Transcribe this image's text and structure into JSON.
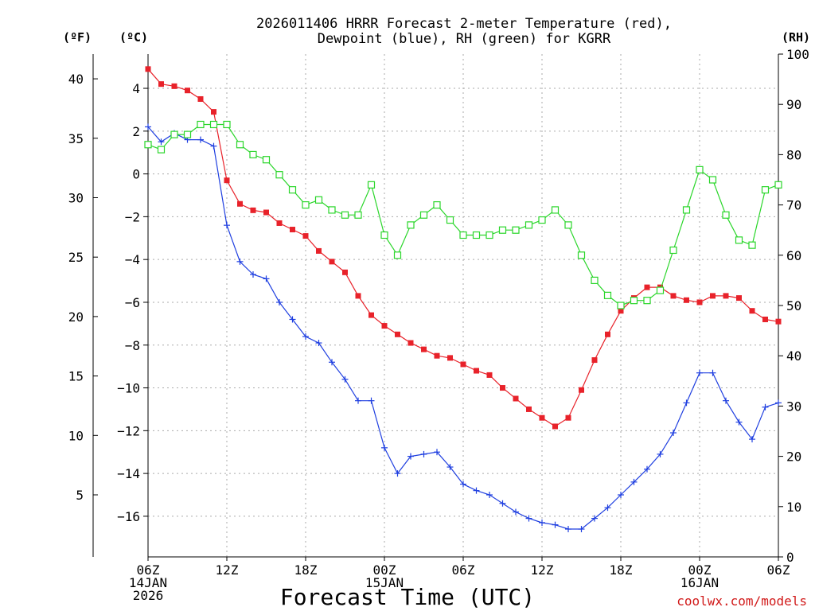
{
  "chart_data": {
    "type": "line",
    "title_line1": "2026011406 HRRR Forecast 2-meter Temperature (red),",
    "title_line2": "Dewpoint (blue), RH (green) for KGRR",
    "xlabel": "Forecast Time (UTC)",
    "watermark": "coolwx.com/models",
    "unit_f_label": "(ºF)",
    "unit_c_label": "(ºC)",
    "unit_rh_label": "(RH)",
    "xlim": [
      0,
      48
    ],
    "ylim_c": [
      -17.9,
      5.6
    ],
    "ylim_rh": [
      0,
      100
    ],
    "x_ticks": [
      {
        "x": 0,
        "label": "06Z",
        "sub1": "14JAN",
        "sub2": "2026"
      },
      {
        "x": 6,
        "label": "12Z",
        "sub1": "",
        "sub2": ""
      },
      {
        "x": 12,
        "label": "18Z",
        "sub1": "",
        "sub2": ""
      },
      {
        "x": 18,
        "label": "00Z",
        "sub1": "15JAN",
        "sub2": ""
      },
      {
        "x": 24,
        "label": "06Z",
        "sub1": "",
        "sub2": ""
      },
      {
        "x": 30,
        "label": "12Z",
        "sub1": "",
        "sub2": ""
      },
      {
        "x": 36,
        "label": "18Z",
        "sub1": "",
        "sub2": ""
      },
      {
        "x": 42,
        "label": "00Z",
        "sub1": "16JAN",
        "sub2": ""
      },
      {
        "x": 48,
        "label": "06Z",
        "sub1": "",
        "sub2": ""
      }
    ],
    "c_ticks": [
      {
        "v": 4,
        "label": "4"
      },
      {
        "v": 2,
        "label": "2"
      },
      {
        "v": 0,
        "label": "0"
      },
      {
        "v": -2,
        "label": "−2"
      },
      {
        "v": -4,
        "label": "−4"
      },
      {
        "v": -6,
        "label": "−6"
      },
      {
        "v": -8,
        "label": "−8"
      },
      {
        "v": -10,
        "label": "−10"
      },
      {
        "v": -12,
        "label": "−12"
      },
      {
        "v": -14,
        "label": "−14"
      },
      {
        "v": -16,
        "label": "−16"
      }
    ],
    "f_ticks": [
      {
        "v": 40,
        "label": "40"
      },
      {
        "v": 35,
        "label": "35"
      },
      {
        "v": 30,
        "label": "30"
      },
      {
        "v": 25,
        "label": "25"
      },
      {
        "v": 20,
        "label": "20"
      },
      {
        "v": 15,
        "label": "15"
      },
      {
        "v": 10,
        "label": "10"
      },
      {
        "v": 5,
        "label": "5"
      }
    ],
    "rh_ticks": [
      {
        "v": 100,
        "label": "100"
      },
      {
        "v": 90,
        "label": "90"
      },
      {
        "v": 80,
        "label": "80"
      },
      {
        "v": 70,
        "label": "70"
      },
      {
        "v": 60,
        "label": "60"
      },
      {
        "v": 50,
        "label": "50"
      },
      {
        "v": 40,
        "label": "40"
      },
      {
        "v": 30,
        "label": "30"
      },
      {
        "v": 20,
        "label": "20"
      },
      {
        "v": 10,
        "label": "10"
      },
      {
        "v": 0,
        "label": "0"
      }
    ],
    "series": [
      {
        "name": "Temperature (°C)",
        "axis": "c",
        "color": "#e8222a",
        "marker": "filled-square",
        "values": [
          4.9,
          4.2,
          4.1,
          3.9,
          3.5,
          2.9,
          -0.3,
          -1.4,
          -1.7,
          -1.8,
          -2.3,
          -2.6,
          -2.9,
          -3.6,
          -4.1,
          -4.6,
          -5.7,
          -6.6,
          -7.1,
          -7.5,
          -7.9,
          -8.2,
          -8.5,
          -8.6,
          -8.9,
          -9.2,
          -9.4,
          -10.0,
          -10.5,
          -11.0,
          -11.4,
          -11.8,
          -11.4,
          -10.1,
          -8.7,
          -7.5,
          -6.4,
          -5.8,
          -5.3,
          -5.3,
          -5.7,
          -5.9,
          -6.0,
          -5.7,
          -5.7,
          -5.8,
          -6.4,
          -6.8,
          -6.9
        ]
      },
      {
        "name": "Dewpoint (°C)",
        "axis": "c",
        "color": "#1f3fe0",
        "marker": "plus",
        "values": [
          2.2,
          1.5,
          1.9,
          1.6,
          1.6,
          1.3,
          -2.4,
          -4.1,
          -4.7,
          -4.9,
          -6.0,
          -6.8,
          -7.6,
          -7.9,
          -8.8,
          -9.6,
          -10.6,
          -10.6,
          -12.8,
          -14.0,
          -13.2,
          -13.1,
          -13.0,
          -13.7,
          -14.5,
          -14.8,
          -15.0,
          -15.4,
          -15.8,
          -16.1,
          -16.3,
          -16.4,
          -16.6,
          -16.6,
          -16.1,
          -15.6,
          -15.0,
          -14.4,
          -13.8,
          -13.1,
          -12.1,
          -10.7,
          -9.3,
          -9.3,
          -10.6,
          -11.6,
          -12.4,
          -10.9,
          -10.7
        ]
      },
      {
        "name": "RH (%)",
        "axis": "rh",
        "color": "#2ad62a",
        "marker": "open-square",
        "values": [
          82,
          81,
          84,
          84,
          86,
          86,
          86,
          82,
          80,
          79,
          76,
          73,
          70,
          71,
          69,
          68,
          68,
          74,
          64,
          60,
          66,
          68,
          70,
          67,
          64,
          64,
          64,
          65,
          65,
          66,
          67,
          69,
          66,
          60,
          55,
          52,
          50,
          51,
          51,
          53,
          61,
          69,
          77,
          75,
          68,
          63,
          62,
          73,
          74
        ]
      }
    ]
  }
}
